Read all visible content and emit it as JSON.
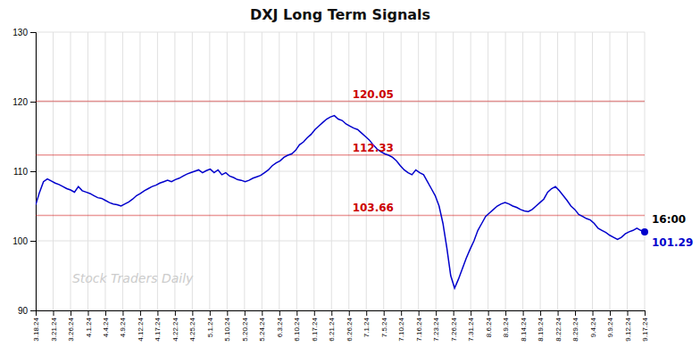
{
  "chart_data": {
    "type": "line",
    "title": "DXJ Long Term Signals",
    "color": "#0000CC",
    "grid": true,
    "ylim": [
      90,
      130
    ],
    "yticks": [
      90,
      100,
      110,
      120,
      130
    ],
    "xlim": [
      0,
      35
    ],
    "xticks": [
      {
        "value": 0,
        "label": "3.18.24"
      },
      {
        "value": 1,
        "label": "3.21.24"
      },
      {
        "value": 2,
        "label": "3.26.24"
      },
      {
        "value": 3,
        "label": "4.1.24"
      },
      {
        "value": 4,
        "label": "4.4.24"
      },
      {
        "value": 5,
        "label": "4.9.24"
      },
      {
        "value": 6,
        "label": "4.12.24"
      },
      {
        "value": 7,
        "label": "4.17.24"
      },
      {
        "value": 8,
        "label": "4.22.24"
      },
      {
        "value": 9,
        "label": "4.25.24"
      },
      {
        "value": 10,
        "label": "5.1.24"
      },
      {
        "value": 11,
        "label": "5.10.24"
      },
      {
        "value": 12,
        "label": "5.20.24"
      },
      {
        "value": 13,
        "label": "5.24.24"
      },
      {
        "value": 14,
        "label": "6.3.24"
      },
      {
        "value": 15,
        "label": "6.10.24"
      },
      {
        "value": 16,
        "label": "6.17.24"
      },
      {
        "value": 17,
        "label": "6.21.24"
      },
      {
        "value": 18,
        "label": "6.26.24"
      },
      {
        "value": 19,
        "label": "7.1.24"
      },
      {
        "value": 20,
        "label": "7.5.24"
      },
      {
        "value": 21,
        "label": "7.10.24"
      },
      {
        "value": 22,
        "label": "7.16.24"
      },
      {
        "value": 23,
        "label": "7.23.24"
      },
      {
        "value": 24,
        "label": "7.26.24"
      },
      {
        "value": 25,
        "label": "7.31.24"
      },
      {
        "value": 26,
        "label": "8.6.24"
      },
      {
        "value": 27,
        "label": "8.9.24"
      },
      {
        "value": 28,
        "label": "8.14.24"
      },
      {
        "value": 29,
        "label": "8.19.24"
      },
      {
        "value": 30,
        "label": "8.22.24"
      },
      {
        "value": 31,
        "label": "8.29.24"
      },
      {
        "value": 32,
        "label": "9.4.24"
      },
      {
        "value": 33,
        "label": "9.9.24"
      },
      {
        "value": 34,
        "label": "9.12.24"
      },
      {
        "value": 35,
        "label": "9.17.24"
      }
    ],
    "hlines": [
      {
        "value": 120.05,
        "label": "120.05",
        "color": "#cc0000"
      },
      {
        "value": 112.33,
        "label": "112.33",
        "color": "#cc0000"
      },
      {
        "value": 103.66,
        "label": "103.66",
        "color": "#cc0000"
      }
    ],
    "end_labels": [
      "16:00",
      "101.29"
    ],
    "watermark": "Stock Traders Daily",
    "values": [
      105.2,
      107.0,
      108.5,
      108.9,
      108.6,
      108.3,
      108.1,
      107.8,
      107.5,
      107.3,
      107.0,
      107.8,
      107.2,
      107.0,
      106.8,
      106.5,
      106.2,
      106.1,
      105.8,
      105.5,
      105.3,
      105.2,
      105.0,
      105.3,
      105.6,
      106.0,
      106.5,
      106.8,
      107.2,
      107.5,
      107.8,
      108.0,
      108.3,
      108.5,
      108.7,
      108.5,
      108.8,
      109.0,
      109.3,
      109.6,
      109.8,
      110.0,
      110.2,
      109.8,
      110.1,
      110.3,
      109.8,
      110.2,
      109.5,
      109.8,
      109.3,
      109.1,
      108.8,
      108.7,
      108.5,
      108.7,
      109.0,
      109.2,
      109.4,
      109.8,
      110.2,
      110.8,
      111.2,
      111.5,
      112.0,
      112.3,
      112.5,
      113.0,
      113.8,
      114.2,
      114.8,
      115.3,
      116.0,
      116.5,
      117.0,
      117.5,
      117.8,
      118.0,
      117.5,
      117.3,
      116.8,
      116.5,
      116.2,
      116.0,
      115.5,
      115.0,
      114.5,
      113.8,
      113.2,
      112.8,
      112.5,
      112.3,
      112.0,
      111.5,
      110.8,
      110.2,
      109.8,
      109.5,
      110.2,
      109.8,
      109.5,
      108.5,
      107.5,
      106.5,
      105.0,
      102.5,
      99.0,
      95.0,
      93.2,
      94.5,
      96.0,
      97.5,
      98.8,
      100.0,
      101.5,
      102.5,
      103.5,
      104.0,
      104.5,
      105.0,
      105.3,
      105.5,
      105.3,
      105.0,
      104.8,
      104.5,
      104.3,
      104.2,
      104.5,
      105.0,
      105.5,
      106.0,
      107.0,
      107.5,
      107.8,
      107.2,
      106.5,
      105.8,
      105.0,
      104.5,
      103.8,
      103.5,
      103.2,
      103.0,
      102.5,
      101.8,
      101.5,
      101.2,
      100.8,
      100.5,
      100.2,
      100.5,
      101.0,
      101.3,
      101.5,
      101.8,
      101.5,
      101.29
    ]
  }
}
